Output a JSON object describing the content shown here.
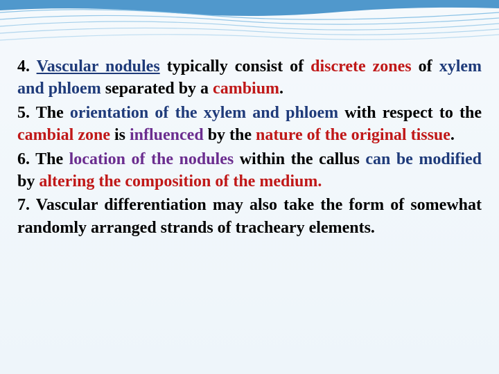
{
  "items": [
    {
      "num": "4.",
      "parts": [
        {
          "text": " ",
          "cls": "normal"
        },
        {
          "text": "Vascular nodules",
          "cls": "navy",
          "underline": true
        },
        {
          "text": " typically consist of ",
          "cls": "normal"
        },
        {
          "text": "discrete zones",
          "cls": "red"
        },
        {
          "text": " of ",
          "cls": "normal"
        },
        {
          "text": "xylem and phloem",
          "cls": "navy"
        },
        {
          "text": " separated by a ",
          "cls": "normal"
        },
        {
          "text": "cambium",
          "cls": "red"
        },
        {
          "text": ".",
          "cls": "normal"
        }
      ]
    },
    {
      "num": "5.",
      "parts": [
        {
          "text": " The ",
          "cls": "normal"
        },
        {
          "text": "orientation of the xylem and phloem",
          "cls": "navy"
        },
        {
          "text": " with respect to the ",
          "cls": "normal"
        },
        {
          "text": "cambial zone",
          "cls": "red"
        },
        {
          "text": " is ",
          "cls": "normal"
        },
        {
          "text": "influenced",
          "cls": "purple"
        },
        {
          "text": " by the ",
          "cls": "normal"
        },
        {
          "text": "nature of the original tissue",
          "cls": "red"
        },
        {
          "text": ".",
          "cls": "normal"
        }
      ]
    },
    {
      "num": "6.",
      "parts": [
        {
          "text": " The ",
          "cls": "normal"
        },
        {
          "text": "location of the nodules",
          "cls": "purple"
        },
        {
          "text": " within the callus ",
          "cls": "normal"
        },
        {
          "text": "can be modified",
          "cls": "navy"
        },
        {
          "text": " by ",
          "cls": "normal"
        },
        {
          "text": "altering the composition of the medium.",
          "cls": "red"
        }
      ]
    },
    {
      "num": "7.",
      "parts": [
        {
          "text": " Vascular differentiation may also take the form of somewhat randomly arranged strands of tracheary elements.",
          "cls": "normal"
        }
      ]
    }
  ],
  "wave": {
    "stroke": "#6fb4e0",
    "fill_top": "#3e8dc6"
  }
}
